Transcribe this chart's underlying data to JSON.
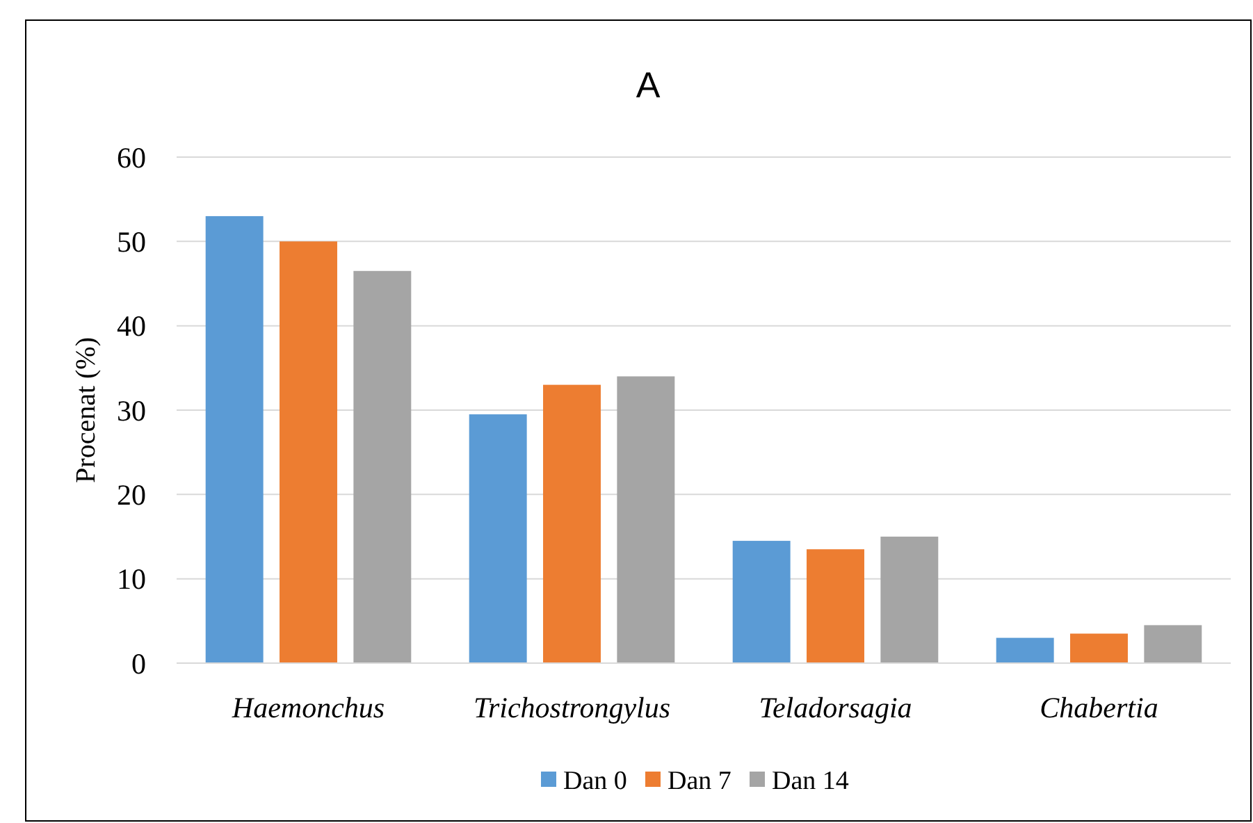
{
  "chart_data": {
    "type": "bar",
    "title": "A",
    "ylabel": "Procenat (%)",
    "categories": [
      "Haemonchus",
      "Trichostrongylus",
      "Teladorsagia",
      "Chabertia"
    ],
    "series": [
      {
        "name": "Dan 0",
        "color": "#5b9bd5",
        "values": [
          53,
          29.5,
          14.5,
          3
        ]
      },
      {
        "name": "Dan 7",
        "color": "#ed7d31",
        "values": [
          50,
          33,
          13.5,
          3.5
        ]
      },
      {
        "name": "Dan 14",
        "color": "#a5a5a5",
        "values": [
          46.5,
          34,
          15,
          4.5
        ]
      }
    ],
    "ylim": [
      0,
      60
    ],
    "yticks": [
      0,
      10,
      20,
      30,
      40,
      50,
      60
    ],
    "grid": "y",
    "legend": "bottom"
  }
}
